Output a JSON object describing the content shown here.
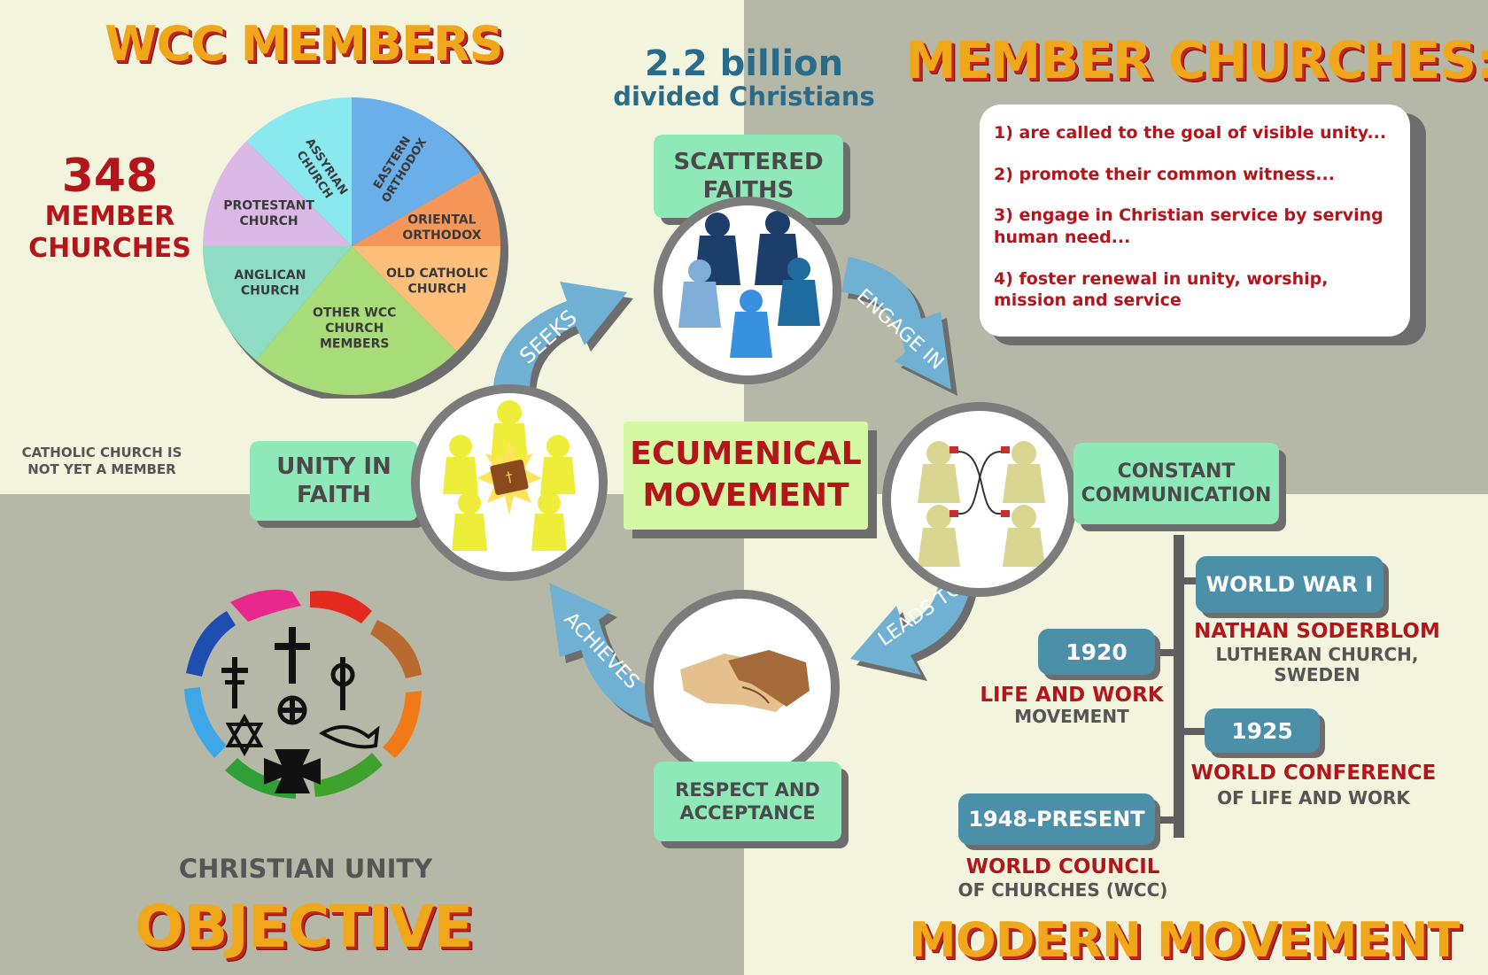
{
  "titles": {
    "wcc_members": "WCC MEMBERS",
    "member_churches": "MEMBER CHURCHES:",
    "objective": "OBJECTIVE",
    "modern_movement": "MODERN MOVEMENT"
  },
  "stats": {
    "population_line1": "2.2 billion",
    "population_line2": "divided Christians",
    "member_count": "348",
    "member_label_line1": "MEMBER",
    "member_label_line2": "CHURCHES",
    "catholic_note_line1": "CATHOLIC CHURCH IS",
    "catholic_note_line2": "NOT YET A MEMBER"
  },
  "pie": {
    "slices": [
      {
        "label_lines": [
          "EASTERN",
          "ORTHODOX"
        ],
        "color": "#6aaeea"
      },
      {
        "label_lines": [
          "ORIENTAL",
          "ORTHODOX"
        ],
        "color": "#f6975a"
      },
      {
        "label_lines": [
          "OLD CATHOLIC",
          "CHURCH"
        ],
        "color": "#fdbf7a"
      },
      {
        "label_lines": [
          "OTHER WCC",
          "CHURCH",
          "MEMBERS"
        ],
        "color": "#a8dc78"
      },
      {
        "label_lines": [
          "ANGLICAN",
          "CHURCH"
        ],
        "color": "#8ddcc4"
      },
      {
        "label_lines": [
          "PROTESTANT",
          "CHURCH"
        ],
        "color": "#dcb8e6"
      },
      {
        "label_lines": [
          "ASSYRIAN",
          "CHURCH"
        ],
        "color": "#8ae8ef"
      }
    ]
  },
  "member_duties": [
    "1) are called to the goal of visible unity...",
    "2) promote their common witness...",
    "3) engage in Christian service by serving human need...",
    "4) foster renewal in unity, worship, mission and service"
  ],
  "cycle": {
    "center_line1": "ECUMENICAL",
    "center_line2": "MOVEMENT",
    "scattered_line1": "SCATTERED",
    "scattered_line2": "FAITHS",
    "unity_line1": "UNITY IN",
    "unity_line2": "FAITH",
    "communication_line1": "CONSTANT",
    "communication_line2": "COMMUNICATION",
    "respect_line1": "RESPECT AND",
    "respect_line2": "ACCEPTANCE",
    "arrow_seeks": "SEEKS",
    "arrow_engage": "ENGAGE IN",
    "arrow_leads": "LEADS TO",
    "arrow_achieves": "ACHIEVES"
  },
  "objective_text": "CHRISTIAN UNITY",
  "timeline": {
    "ww1": "WORLD WAR I",
    "ww1_name": "NATHAN SODERBLOM",
    "ww1_detail_line1": "LUTHERAN CHURCH,",
    "ww1_detail_line2": "SWEDEN",
    "y1920": "1920",
    "y1920_title": "LIFE AND WORK",
    "y1920_detail": "MOVEMENT",
    "y1925": "1925",
    "y1925_title": "WORLD CONFERENCE",
    "y1925_detail": "OF LIFE AND WORK",
    "y1948": "1948-PRESENT",
    "y1948_title": "WORLD COUNCIL",
    "y1948_detail": "OF CHURCHES (WCC)"
  },
  "colors": {
    "title_orange": "#f0a81a",
    "title_red_shadow": "#c0241e",
    "accent_red": "#b3151b",
    "teal_blue": "#2a6b8a",
    "box_green": "#8ee8b8",
    "pill_blue": "#4c8fa8",
    "arrow_blue": "#6fb0d3"
  }
}
